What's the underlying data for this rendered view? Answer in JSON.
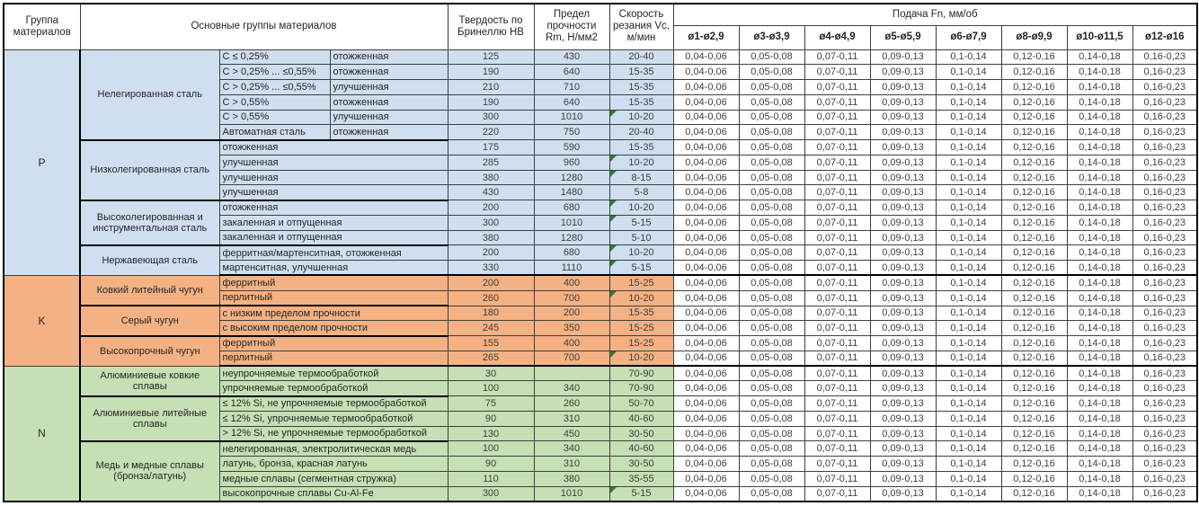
{
  "header": {
    "col_group": "Группа материалов",
    "col_main": "Основные группы материалов",
    "col_hb": "Твердость по Бринеллю НВ",
    "col_rm": "Предел прочности Rm, Н/мм2",
    "col_vc": "Скорость резания Vc, м/мин",
    "feed_title": "Подача Fn, мм/об",
    "feed_cols": [
      "ø1-ø2,9",
      "ø3-ø3,9",
      "ø4-ø4,9",
      "ø5-ø5,9",
      "ø6-ø7,9",
      "ø8-ø9,9",
      "ø10-ø11,5",
      "ø12-ø16"
    ]
  },
  "feed_values": [
    "0,04-0,06",
    "0,05-0,08",
    "0,07-0,11",
    "0,09-0,13",
    "0,1-0,14",
    "0,12-0,16",
    "0,14-0,18",
    "0,16-0,23"
  ],
  "colors": {
    "p": "#cfdfef",
    "k": "#f4b183",
    "n": "#c5e0b4",
    "flag_green": "#2e7d32"
  },
  "groups": [
    {
      "code": "P",
      "color": "#cfdfef",
      "subgroups": [
        {
          "name": "Нелегированная сталь",
          "rows": [
            {
              "spec": "C ≤ 0,25%",
              "state": "отожженная",
              "hb": "125",
              "rm": "430",
              "vc": "20-40",
              "vc_flag": false
            },
            {
              "spec": "C > 0,25% ... ≤0,55%",
              "state": "отожженная",
              "hb": "190",
              "rm": "640",
              "vc": "15-35",
              "vc_flag": false
            },
            {
              "spec": "C > 0,25% ... ≤0,55%",
              "state": "улучшенная",
              "hb": "210",
              "rm": "710",
              "vc": "15-35",
              "vc_flag": false
            },
            {
              "spec": "C > 0,55%",
              "state": "отожженная",
              "hb": "190",
              "rm": "640",
              "vc": "15-35",
              "vc_flag": false
            },
            {
              "spec": "C > 0,55%",
              "state": "улучшенная",
              "hb": "300",
              "rm": "1010",
              "vc": "10-20",
              "vc_flag": true
            },
            {
              "spec": "Автоматная сталь",
              "state": "отожженная",
              "hb": "220",
              "rm": "750",
              "vc": "20-40",
              "vc_flag": false
            }
          ]
        },
        {
          "name": "Низколегированная сталь",
          "rows": [
            {
              "desc": "отожженная",
              "hb": "175",
              "rm": "590",
              "vc": "15-35",
              "vc_flag": false
            },
            {
              "desc": "улучшенная",
              "hb": "285",
              "rm": "960",
              "vc": "10-20",
              "vc_flag": true
            },
            {
              "desc": "улучшенная",
              "hb": "380",
              "rm": "1280",
              "vc": "8-15",
              "vc_flag": true
            },
            {
              "desc": "улучшенная",
              "hb": "430",
              "rm": "1480",
              "vc": "5-8",
              "vc_flag": false
            }
          ]
        },
        {
          "name": "Высоколегированная и инструментальная сталь",
          "rows": [
            {
              "desc": "отожженная",
              "hb": "200",
              "rm": "680",
              "vc": "10-20",
              "vc_flag": true
            },
            {
              "desc": "закаленная и отпущенная",
              "hb": "300",
              "rm": "1010",
              "vc": "5-15",
              "vc_flag": true
            },
            {
              "desc": "закаленная и отпущенная",
              "hb": "380",
              "rm": "1280",
              "vc": "5-10",
              "vc_flag": false
            }
          ]
        },
        {
          "name": "Нержавеющая сталь",
          "rows": [
            {
              "desc": "ферритная/мартенситная, отожженная",
              "hb": "200",
              "rm": "680",
              "vc": "10-20",
              "vc_flag": true
            },
            {
              "desc": "мартенситная, улучшенная",
              "hb": "330",
              "rm": "1110",
              "vc": "5-15",
              "vc_flag": true
            }
          ]
        }
      ]
    },
    {
      "code": "K",
      "color": "#f4b183",
      "subgroups": [
        {
          "name": "Ковкий литейный чугун",
          "rows": [
            {
              "desc": "ферритный",
              "hb": "200",
              "rm": "400",
              "vc": "15-25",
              "vc_flag": false
            },
            {
              "desc": "перлитный",
              "hb": "260",
              "rm": "700",
              "vc": "10-20",
              "vc_flag": true
            }
          ]
        },
        {
          "name": "Серый чугун",
          "rows": [
            {
              "desc": "с низким пределом прочности",
              "hb": "180",
              "rm": "200",
              "vc": "15-35",
              "vc_flag": false
            },
            {
              "desc": "с высоким пределом прочности",
              "hb": "245",
              "rm": "350",
              "vc": "15-25",
              "vc_flag": false
            }
          ]
        },
        {
          "name": "Высокопрочный чугун",
          "rows": [
            {
              "desc": "ферритный",
              "hb": "155",
              "rm": "400",
              "vc": "15-25",
              "vc_flag": false
            },
            {
              "desc": "перлитный",
              "hb": "265",
              "rm": "700",
              "vc": "10-20",
              "vc_flag": true
            }
          ]
        }
      ]
    },
    {
      "code": "N",
      "color": "#c5e0b4",
      "subgroups": [
        {
          "name": "Алюминиевые ковкие сплавы",
          "rows": [
            {
              "desc": "неупрочняемые термообработкой",
              "hb": "30",
              "rm": "",
              "vc": "70-90",
              "vc_flag": false
            },
            {
              "desc": "упрочняемые термообработкой",
              "hb": "100",
              "rm": "340",
              "vc": "70-90",
              "vc_flag": false
            }
          ]
        },
        {
          "name": "Алюминиевые литейные сплавы",
          "rows": [
            {
              "desc": "≤ 12% Si, не упрочняемые термообработкой",
              "hb": "75",
              "rm": "260",
              "vc": "50-70",
              "vc_flag": false
            },
            {
              "desc": "≤ 12% Si, упрочняемые термообработкой",
              "hb": "90",
              "rm": "310",
              "vc": "40-60",
              "vc_flag": false
            },
            {
              "desc": "> 12% Si, не упрочняемые термообработкой",
              "hb": "130",
              "rm": "450",
              "vc": "30-50",
              "vc_flag": false
            }
          ]
        },
        {
          "name": "Медь и медные сплавы (бронза/латунь)",
          "rows": [
            {
              "desc": "нелегированная, электролитическая медь",
              "hb": "100",
              "rm": "340",
              "vc": "40-60",
              "vc_flag": false
            },
            {
              "desc": "латунь, бронза, красная латунь",
              "hb": "90",
              "rm": "310",
              "vc": "30-50",
              "vc_flag": false
            },
            {
              "desc": "медные сплавы (сегментная стружка)",
              "hb": "110",
              "rm": "380",
              "vc": "35-55",
              "vc_flag": false
            },
            {
              "desc": "высокопрочные сплавы Cu-Al-Fe",
              "hb": "300",
              "rm": "1010",
              "vc": "5-15",
              "vc_flag": true
            }
          ]
        }
      ]
    }
  ]
}
